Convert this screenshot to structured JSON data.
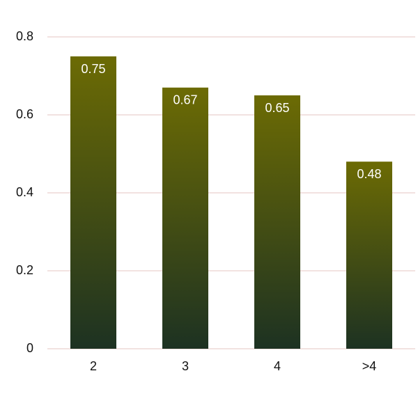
{
  "chart_data": {
    "type": "bar",
    "categories": [
      "2",
      "3",
      "4",
      ">4"
    ],
    "values": [
      0.75,
      0.67,
      0.65,
      0.48
    ],
    "gradient": {
      "top": "#6c6b04",
      "bottom": "#1d3222"
    },
    "value_label_color": "#ffffff",
    "ylim": [
      0,
      0.8
    ],
    "yticks": [
      0,
      0.2,
      0.4,
      0.6,
      0.8
    ],
    "grid": true,
    "grid_color": "#e6c4c0"
  }
}
